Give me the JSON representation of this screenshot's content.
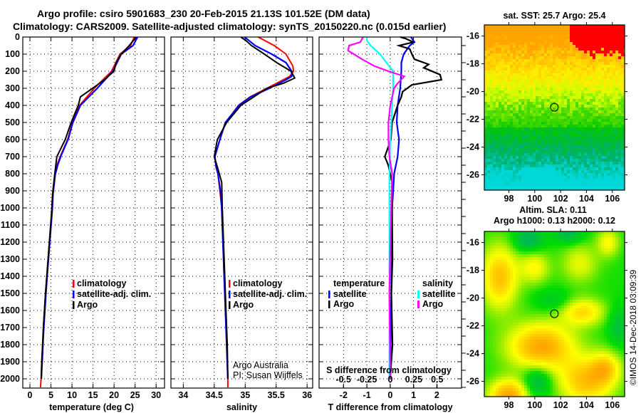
{
  "title": {
    "line1": "Argo profile: csiro 5901683_230 20-Feb-2015 21.13S 101.52E (DM data)",
    "line2": "Climatology: CARS2009. Satellite-adjusted climatology: synTS_20150220.nc (0.015d earlier)"
  },
  "colors": {
    "climatology": "#ff0000",
    "satellite": "#0000ff",
    "argo": "#000000",
    "salinity_satellite": "#00ffff",
    "salinity_argo": "#ff00ff"
  },
  "chart_data": [
    {
      "type": "line",
      "xlabel": "temperature (deg C)",
      "xlim": [
        -1.7,
        32.0
      ],
      "ylim": [
        2055,
        0
      ],
      "xticks": [
        0,
        5,
        10,
        15,
        20,
        25,
        30
      ],
      "yticks": [
        0,
        100,
        200,
        300,
        400,
        500,
        600,
        700,
        800,
        900,
        1000,
        1100,
        1200,
        1300,
        1400,
        1500,
        1600,
        1700,
        1800,
        1900,
        2000
      ],
      "grid": true,
      "legend": [
        "climatology",
        "satellite-adj. clim.",
        "Argo"
      ],
      "series": [
        {
          "name": "climatology",
          "color": "#ff0000",
          "points": [
            [
              0,
              24.8
            ],
            [
              50,
              23.9
            ],
            [
              100,
              21.4
            ],
            [
              200,
              19.4
            ],
            [
              297,
              15.4
            ],
            [
              400,
              11.8
            ],
            [
              500,
              10.1
            ],
            [
              597,
              9.0
            ],
            [
              694,
              7.3
            ],
            [
              750,
              6.4
            ],
            [
              806,
              5.9
            ],
            [
              917,
              5.4
            ],
            [
              1014,
              5.2
            ],
            [
              1400,
              4.0
            ],
            [
              1500,
              3.7
            ],
            [
              1700,
              3.2
            ],
            [
              1800,
              3.05
            ],
            [
              1900,
              2.8
            ],
            [
              2000,
              2.65
            ],
            [
              2050,
              2.5
            ]
          ]
        },
        {
          "name": "satellite-adj. clim.",
          "color": "#0000ff",
          "points": [
            [
              0,
              25.6
            ],
            [
              50,
              24.5
            ],
            [
              100,
              21.7
            ],
            [
              200,
              19.7
            ],
            [
              300,
              16.0
            ],
            [
              400,
              12.0
            ],
            [
              500,
              10.2
            ],
            [
              597,
              9.1
            ],
            [
              694,
              7.4
            ],
            [
              750,
              6.6
            ],
            [
              806,
              6.0
            ],
            [
              917,
              5.5
            ],
            [
              1014,
              5.3
            ],
            [
              1400,
              4.1
            ],
            [
              1500,
              3.8
            ],
            [
              1700,
              3.3
            ],
            [
              1800,
              3.1
            ],
            [
              1900,
              2.9
            ],
            [
              2000,
              2.7
            ]
          ]
        },
        {
          "name": "Argo",
          "color": "#000000",
          "points": [
            [
              0,
              25.3
            ],
            [
              50,
              23.6
            ],
            [
              100,
              21.7
            ],
            [
              150,
              20.5
            ],
            [
              200,
              20.0
            ],
            [
              250,
              17.7
            ],
            [
              300,
              14.9
            ],
            [
              350,
              12.0
            ],
            [
              400,
              11.5
            ],
            [
              500,
              9.8
            ],
            [
              600,
              8.4
            ],
            [
              700,
              6.4
            ],
            [
              800,
              5.9
            ],
            [
              917,
              5.4
            ],
            [
              1014,
              5.2
            ],
            [
              1400,
              4.0
            ],
            [
              1500,
              3.7
            ],
            [
              1700,
              3.2
            ],
            [
              1800,
              3.0
            ],
            [
              1900,
              2.8
            ],
            [
              2000,
              2.7
            ]
          ]
        }
      ]
    },
    {
      "type": "line",
      "xlabel": "salinity",
      "xlim": [
        33.8,
        36.09
      ],
      "ylim": [
        2055,
        0
      ],
      "xticks": [
        34,
        34.5,
        35,
        35.5,
        36
      ],
      "grid": true,
      "legend": [
        "climatology",
        "satellite-adj. clim.",
        "Argo"
      ],
      "credit": [
        "Argo Australia",
        "PI: Susan Wijffels"
      ],
      "series": [
        {
          "name": "climatology",
          "color": "#ff0000",
          "points": [
            [
              0,
              35.21
            ],
            [
              50,
              35.47
            ],
            [
              100,
              35.66
            ],
            [
              170,
              35.77
            ],
            [
              200,
              35.78
            ],
            [
              230,
              35.72
            ],
            [
              300,
              35.35
            ],
            [
              350,
              35.08
            ],
            [
              400,
              34.89
            ],
            [
              450,
              34.79
            ],
            [
              500,
              34.68
            ],
            [
              600,
              34.59
            ],
            [
              700,
              34.51
            ],
            [
              760,
              34.53
            ],
            [
              800,
              34.56
            ],
            [
              900,
              34.59
            ],
            [
              1000,
              34.62
            ],
            [
              1400,
              34.66
            ],
            [
              1600,
              34.68
            ],
            [
              1800,
              34.7
            ],
            [
              2000,
              34.72
            ],
            [
              2050,
              34.72
            ]
          ]
        },
        {
          "name": "satellite-adj. clim.",
          "color": "#0000ff",
          "points": [
            [
              0,
              34.99
            ],
            [
              50,
              35.16
            ],
            [
              100,
              35.43
            ],
            [
              150,
              35.66
            ],
            [
              200,
              35.75
            ],
            [
              230,
              35.75
            ],
            [
              250,
              35.66
            ],
            [
              300,
              35.39
            ],
            [
              350,
              35.09
            ],
            [
              400,
              34.9
            ],
            [
              450,
              34.79
            ],
            [
              500,
              34.68
            ],
            [
              600,
              34.59
            ],
            [
              700,
              34.51
            ],
            [
              760,
              34.53
            ],
            [
              800,
              34.56
            ],
            [
              900,
              34.6
            ],
            [
              1000,
              34.62
            ],
            [
              1400,
              34.66
            ],
            [
              1600,
              34.68
            ],
            [
              1800,
              34.7
            ],
            [
              2000,
              34.72
            ]
          ]
        },
        {
          "name": "Argo",
          "color": "#000000",
          "points": [
            [
              0,
              34.93
            ],
            [
              20,
              35.01
            ],
            [
              50,
              35.1
            ],
            [
              100,
              35.31
            ],
            [
              150,
              35.51
            ],
            [
              200,
              35.74
            ],
            [
              240,
              35.8
            ],
            [
              270,
              35.62
            ],
            [
              300,
              35.35
            ],
            [
              400,
              34.93
            ],
            [
              500,
              34.7
            ],
            [
              600,
              34.55
            ],
            [
              700,
              34.5
            ],
            [
              760,
              34.55
            ],
            [
              850,
              34.62
            ],
            [
              1000,
              34.63
            ],
            [
              1400,
              34.67
            ],
            [
              1600,
              34.69
            ],
            [
              1800,
              34.71
            ],
            [
              2000,
              34.72
            ]
          ]
        }
      ]
    },
    {
      "type": "line",
      "xlabel": "T difference from climatology",
      "x2label": "S difference from climatology",
      "xlim": [
        -3.05,
        3.06
      ],
      "x2lim": [
        -0.76,
        0.76
      ],
      "xticks": [
        -2,
        -1,
        0,
        1,
        2
      ],
      "x2ticks": [
        -0.5,
        -0.25,
        0,
        0.25,
        0.5
      ],
      "x2tick_labels": [
        "-0.5",
        "-0.25",
        "0",
        "0.25",
        "0.5"
      ],
      "ylim": [
        2055,
        0
      ],
      "grid": true,
      "legend": {
        "temperature": {
          "header": "temperature",
          "items": [
            "satellite",
            "Argo"
          ]
        },
        "salinity": {
          "header": "salinity",
          "items": [
            "satellite",
            "Argo"
          ]
        }
      },
      "series": [
        {
          "name": "temperature satellite",
          "axis": "T",
          "color": "#0000ff",
          "points": [
            [
              0,
              0.89
            ],
            [
              30,
              1.04
            ],
            [
              50,
              0.84
            ],
            [
              100,
              0.58
            ],
            [
              150,
              0.48
            ],
            [
              200,
              0.48
            ],
            [
              300,
              0.43
            ],
            [
              400,
              0.32
            ],
            [
              500,
              0.28
            ],
            [
              600,
              0.38
            ],
            [
              700,
              0.32
            ],
            [
              800,
              0.17
            ],
            [
              900,
              0.13
            ],
            [
              1000,
              0.08
            ],
            [
              1500,
              0.05
            ],
            [
              2000,
              0.0
            ]
          ]
        },
        {
          "name": "temperature Argo",
          "axis": "T",
          "color": "#000000",
          "points": [
            [
              0,
              0.43
            ],
            [
              10,
              0.68
            ],
            [
              30,
              0.99
            ],
            [
              50,
              0.38
            ],
            [
              70,
              0.84
            ],
            [
              100,
              0.93
            ],
            [
              130,
              1.04
            ],
            [
              160,
              1.65
            ],
            [
              180,
              1.44
            ],
            [
              220,
              2.14
            ],
            [
              250,
              2.2
            ],
            [
              280,
              0.93
            ],
            [
              320,
              0.53
            ],
            [
              350,
              0.48
            ],
            [
              400,
              0.32
            ],
            [
              500,
              0.08
            ],
            [
              600,
              0.03
            ],
            [
              700,
              -0.23
            ],
            [
              750,
              -0.08
            ],
            [
              850,
              0.08
            ],
            [
              1000,
              0.08
            ],
            [
              1300,
              0.1
            ],
            [
              1500,
              0.05
            ],
            [
              1800,
              0.1
            ],
            [
              2000,
              0.0
            ]
          ]
        },
        {
          "name": "salinity satellite",
          "axis": "S",
          "color": "#00ffff",
          "points": [
            [
              0,
              -0.25
            ],
            [
              20,
              -0.25
            ],
            [
              50,
              -0.21
            ],
            [
              100,
              -0.11
            ],
            [
              150,
              -0.04
            ],
            [
              200,
              0.03
            ],
            [
              300,
              0.03
            ],
            [
              400,
              0.02
            ],
            [
              600,
              0.0
            ],
            [
              800,
              -0.01
            ],
            [
              1000,
              -0.01
            ],
            [
              2000,
              -0.01
            ]
          ]
        },
        {
          "name": "salinity Argo",
          "axis": "S",
          "color": "#ff00ff",
          "points": [
            [
              0,
              -0.29
            ],
            [
              30,
              -0.32
            ],
            [
              50,
              -0.44
            ],
            [
              80,
              -0.45
            ],
            [
              100,
              -0.39
            ],
            [
              130,
              -0.3
            ],
            [
              170,
              -0.17
            ],
            [
              200,
              -0.02
            ],
            [
              230,
              0.15
            ],
            [
              270,
              0.08
            ],
            [
              300,
              0.04
            ],
            [
              400,
              0.0
            ],
            [
              500,
              -0.02
            ],
            [
              600,
              -0.02
            ],
            [
              700,
              -0.01
            ],
            [
              800,
              0.02
            ],
            [
              1000,
              0.01
            ],
            [
              1500,
              -0.01
            ],
            [
              2000,
              0.0
            ]
          ]
        }
      ]
    },
    {
      "type": "heatmap",
      "title": "sat. SST: 25.7 Argo: 25.4",
      "xlim": [
        96.1,
        106.95
      ],
      "ylim": [
        -27.1,
        -15.2
      ],
      "xticks": [
        98,
        100,
        102,
        104,
        106
      ],
      "yticks": [
        -16,
        -18,
        -20,
        -22,
        -24,
        -26
      ],
      "float_position": [
        101.52,
        -21.13
      ]
    },
    {
      "type": "heatmap",
      "title": [
        "Altim. SLA: 0.11",
        "Argo h1000: 0.13 h2000: 0.12"
      ],
      "xlim": [
        96.1,
        106.95
      ],
      "ylim": [
        -27.1,
        -15.2
      ],
      "xticks": [
        98,
        100,
        102,
        104,
        106
      ],
      "yticks": [
        -16,
        -18,
        -20,
        -22,
        -24,
        -26
      ],
      "float_position": [
        101.52,
        -21.13
      ]
    }
  ],
  "footer": {
    "credit": "©IMOS 14-Dec-2018 03:09:39"
  }
}
